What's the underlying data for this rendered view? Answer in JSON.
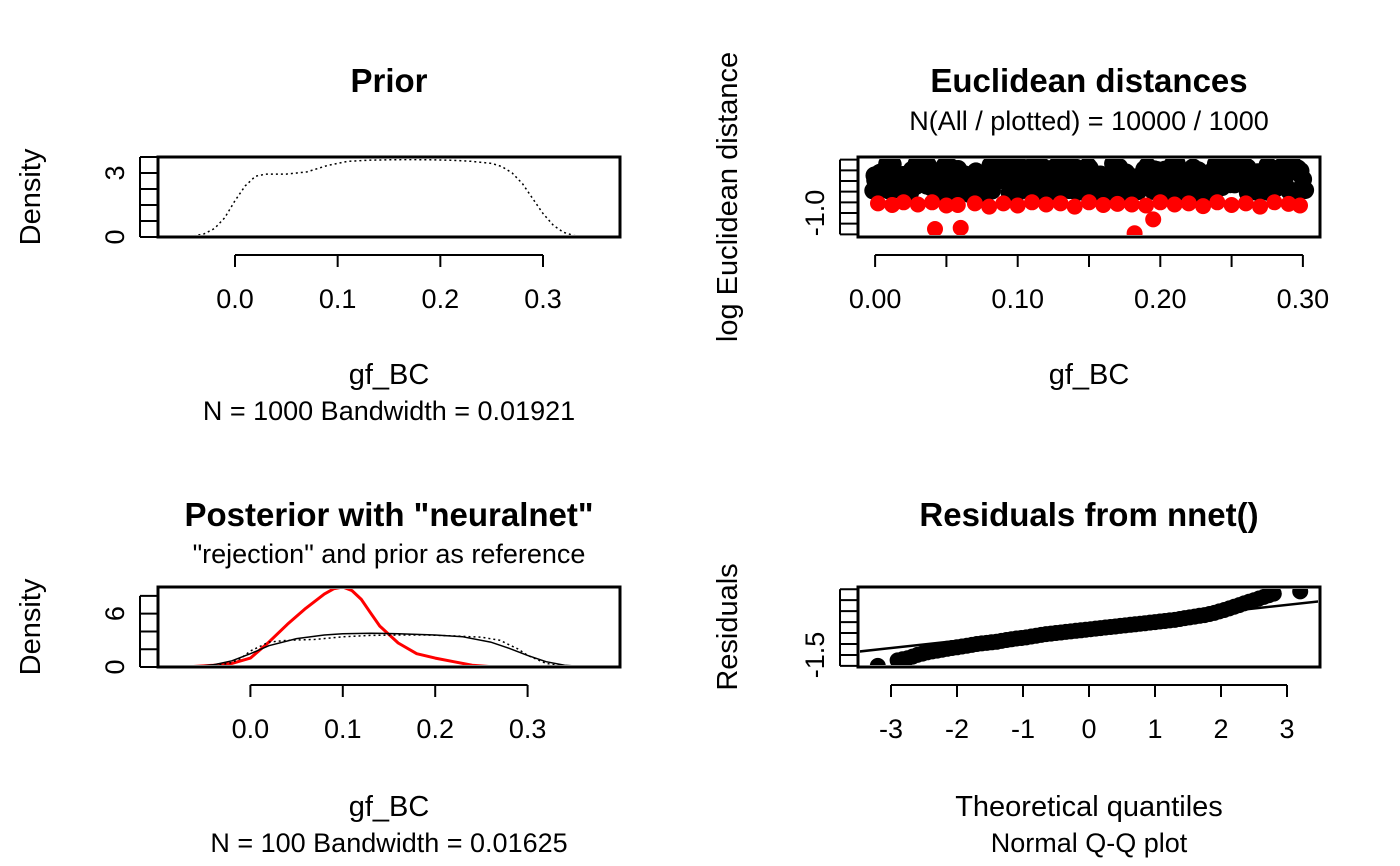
{
  "chart_data": [
    {
      "type": "line",
      "title": "Prior",
      "xlabel": "gf_BC",
      "ylabel": "Density",
      "subtitle": "N = 1000   Bandwidth = 0.01921",
      "xticks": [
        0.0,
        0.1,
        0.2,
        0.3
      ],
      "xtick_labels": [
        "0.0",
        "0.1",
        "0.2",
        "0.3"
      ],
      "yticks": [
        0,
        3
      ],
      "yticks_minor": [
        0,
        0.75,
        1.5,
        2.25,
        3,
        3.75
      ],
      "ytick_labels": [
        "0",
        "3"
      ],
      "xlim": [
        -0.075,
        0.375
      ],
      "ylim": [
        0,
        3.75
      ],
      "series": [
        {
          "line_style": "dotted",
          "color": "#000000",
          "x": [
            -0.055,
            -0.04,
            -0.03,
            -0.02,
            -0.01,
            0.0,
            0.01,
            0.02,
            0.03,
            0.05,
            0.07,
            0.09,
            0.11,
            0.13,
            0.15,
            0.17,
            0.19,
            0.21,
            0.23,
            0.25,
            0.26,
            0.27,
            0.28,
            0.29,
            0.3,
            0.31,
            0.32,
            0.33,
            0.34,
            0.355
          ],
          "y": [
            0.0,
            0.05,
            0.15,
            0.4,
            0.9,
            1.7,
            2.4,
            2.85,
            2.95,
            2.95,
            3.05,
            3.35,
            3.55,
            3.6,
            3.62,
            3.63,
            3.62,
            3.6,
            3.55,
            3.45,
            3.3,
            3.0,
            2.5,
            1.8,
            1.1,
            0.55,
            0.22,
            0.07,
            0.02,
            0.0
          ]
        }
      ]
    },
    {
      "type": "scatter",
      "title": "Euclidean distances",
      "subtitle": "N(All / plotted) =  10000 / 1000",
      "xlabel": "gf_BC",
      "ylabel": "log Euclidean distance",
      "xticks": [
        0.0,
        0.05,
        0.1,
        0.15,
        0.2,
        0.25,
        0.3
      ],
      "xtick_labels": [
        "0.00",
        "0.10",
        "0.20",
        "0.30"
      ],
      "xtick_label_values": [
        0.0,
        0.1,
        0.2,
        0.3
      ],
      "yticks_minor": [
        -1.4,
        -1.2,
        -1.0,
        -0.8,
        -0.6,
        -0.4,
        -0.2,
        0.0
      ],
      "ytick_labels": [
        "-1.0"
      ],
      "ytick_label_values": [
        -1.0
      ],
      "xlim": [
        -0.012,
        0.312
      ],
      "ylim": [
        -1.45,
        0.05
      ],
      "series": [
        {
          "name": "",
          "color": "#000000",
          "note_points": "dense black band",
          "x": [
            0.0,
            0.005,
            0.01,
            0.015,
            0.02,
            0.025,
            0.03,
            0.035,
            0.04,
            0.045,
            0.05,
            0.055,
            0.06,
            0.065,
            0.07,
            0.075,
            0.08,
            0.085,
            0.09,
            0.095,
            0.1,
            0.105,
            0.11,
            0.115,
            0.12,
            0.125,
            0.13,
            0.135,
            0.14,
            0.145,
            0.15,
            0.155,
            0.16,
            0.165,
            0.17,
            0.175,
            0.18,
            0.185,
            0.19,
            0.195,
            0.2,
            0.205,
            0.21,
            0.215,
            0.22,
            0.225,
            0.23,
            0.235,
            0.24,
            0.245,
            0.25,
            0.255,
            0.26,
            0.265,
            0.27,
            0.275,
            0.28,
            0.285,
            0.29,
            0.295,
            0.3
          ],
          "y_low": -0.65,
          "y_high": -0.05
        },
        {
          "name": "",
          "color": "#ff0000",
          "x": [
            0.002,
            0.012,
            0.02,
            0.03,
            0.04,
            0.042,
            0.05,
            0.058,
            0.06,
            0.07,
            0.08,
            0.09,
            0.1,
            0.11,
            0.12,
            0.13,
            0.14,
            0.15,
            0.16,
            0.17,
            0.18,
            0.182,
            0.19,
            0.195,
            0.2,
            0.21,
            0.22,
            0.23,
            0.24,
            0.25,
            0.26,
            0.27,
            0.28,
            0.29,
            0.298
          ],
          "y": [
            -0.82,
            -0.85,
            -0.8,
            -0.84,
            -0.8,
            -1.3,
            -0.86,
            -0.85,
            -1.28,
            -0.82,
            -0.88,
            -0.82,
            -0.86,
            -0.8,
            -0.84,
            -0.82,
            -0.88,
            -0.8,
            -0.85,
            -0.83,
            -0.84,
            -1.38,
            -0.86,
            -1.12,
            -0.8,
            -0.84,
            -0.82,
            -0.87,
            -0.8,
            -0.85,
            -0.82,
            -0.88,
            -0.8,
            -0.83,
            -0.86
          ]
        }
      ]
    },
    {
      "type": "line",
      "title": "Posterior with \"neuralnet\"",
      "subtitle": "\"rejection\" and prior as reference",
      "xlabel": "gf_BC",
      "ylabel": "Density",
      "caption": "N = 100   Bandwidth = 0.01625",
      "xticks": [
        0.0,
        0.1,
        0.2,
        0.3
      ],
      "xtick_labels": [
        "0.0",
        "0.1",
        "0.2",
        "0.3"
      ],
      "yticks": [
        0,
        6
      ],
      "yticks_minor": [
        0,
        2,
        4,
        6,
        8
      ],
      "ytick_labels": [
        "0",
        "6"
      ],
      "xlim": [
        -0.1,
        0.4
      ],
      "ylim": [
        0,
        9
      ],
      "series": [
        {
          "line_style": "solid",
          "color": "#ff0000",
          "width": 3,
          "x": [
            -0.07,
            -0.04,
            -0.02,
            0.0,
            0.02,
            0.04,
            0.06,
            0.08,
            0.09,
            0.1,
            0.11,
            0.12,
            0.13,
            0.14,
            0.16,
            0.18,
            0.2,
            0.22,
            0.24,
            0.265
          ],
          "y": [
            0.0,
            0.2,
            0.4,
            1.0,
            2.8,
            4.8,
            6.6,
            8.2,
            8.8,
            9.0,
            8.6,
            7.6,
            6.1,
            4.6,
            2.7,
            1.5,
            1.0,
            0.6,
            0.2,
            0.0
          ]
        },
        {
          "line_style": "solid",
          "color": "#000000",
          "width": 1.5,
          "x": [
            -0.08,
            -0.06,
            -0.04,
            -0.02,
            0.0,
            0.02,
            0.05,
            0.08,
            0.1,
            0.13,
            0.16,
            0.2,
            0.23,
            0.26,
            0.28,
            0.3,
            0.32,
            0.34,
            0.36,
            0.38
          ],
          "y": [
            0.0,
            0.05,
            0.25,
            0.7,
            1.5,
            2.4,
            3.2,
            3.6,
            3.75,
            3.8,
            3.75,
            3.6,
            3.4,
            2.8,
            2.1,
            1.3,
            0.6,
            0.2,
            0.05,
            0.0
          ]
        },
        {
          "line_style": "dotted",
          "color": "#000000",
          "width": 1.5,
          "x": [
            -0.055,
            -0.04,
            -0.02,
            -0.01,
            0.0,
            0.02,
            0.04,
            0.07,
            0.1,
            0.13,
            0.16,
            0.19,
            0.22,
            0.25,
            0.27,
            0.29,
            0.3,
            0.32,
            0.34,
            0.355
          ],
          "y": [
            0.0,
            0.1,
            0.5,
            1.0,
            1.8,
            2.8,
            3.0,
            3.1,
            3.4,
            3.55,
            3.6,
            3.6,
            3.5,
            3.35,
            3.0,
            2.0,
            1.3,
            0.4,
            0.08,
            0.0
          ]
        }
      ]
    },
    {
      "type": "scatter",
      "title": "Residuals from nnet()",
      "xlabel": "Theoretical quantiles",
      "ylabel": "Residuals",
      "caption": "Normal Q-Q plot",
      "xticks": [
        -3,
        -2,
        -1,
        0,
        1,
        2,
        3
      ],
      "xtick_labels": [
        "-3",
        "-2",
        "-1",
        "0",
        "1",
        "2",
        "3"
      ],
      "yticks_minor": [
        -2.0,
        -1.5,
        -1.0,
        -0.5,
        0.0,
        0.5,
        1.0,
        1.5
      ],
      "ytick_labels": [
        "-1.5"
      ],
      "ytick_label_values": [
        -1.5
      ],
      "xlim": [
        -3.5,
        3.5
      ],
      "ylim": [
        -2.05,
        1.6
      ],
      "reference_line": {
        "x": [
          -3.5,
          3.5
        ],
        "y": [
          -1.35,
          0.95
        ]
      },
      "series": [
        {
          "name": "",
          "color": "#000000",
          "x": [
            -3.2,
            -2.9,
            -2.75,
            -2.6,
            -2.45,
            -2.3,
            -2.15,
            -2.0,
            -1.85,
            -1.7,
            -1.55,
            -1.4,
            -1.25,
            -1.1,
            -0.95,
            -0.8,
            -0.65,
            -0.5,
            -0.35,
            -0.2,
            -0.05,
            0.1,
            0.25,
            0.4,
            0.55,
            0.7,
            0.85,
            1.0,
            1.15,
            1.3,
            1.45,
            1.6,
            1.75,
            1.9,
            2.05,
            2.2,
            2.35,
            2.5,
            2.65,
            2.8,
            3.2
          ],
          "y": [
            -2.0,
            -1.75,
            -1.65,
            -1.5,
            -1.38,
            -1.3,
            -1.22,
            -1.15,
            -1.08,
            -1.0,
            -0.95,
            -0.9,
            -0.82,
            -0.75,
            -0.7,
            -0.62,
            -0.55,
            -0.5,
            -0.45,
            -0.4,
            -0.35,
            -0.3,
            -0.25,
            -0.2,
            -0.15,
            -0.1,
            -0.05,
            0.0,
            0.05,
            0.1,
            0.18,
            0.25,
            0.32,
            0.42,
            0.55,
            0.7,
            0.85,
            1.0,
            1.15,
            1.3,
            1.4
          ]
        }
      ]
    }
  ]
}
